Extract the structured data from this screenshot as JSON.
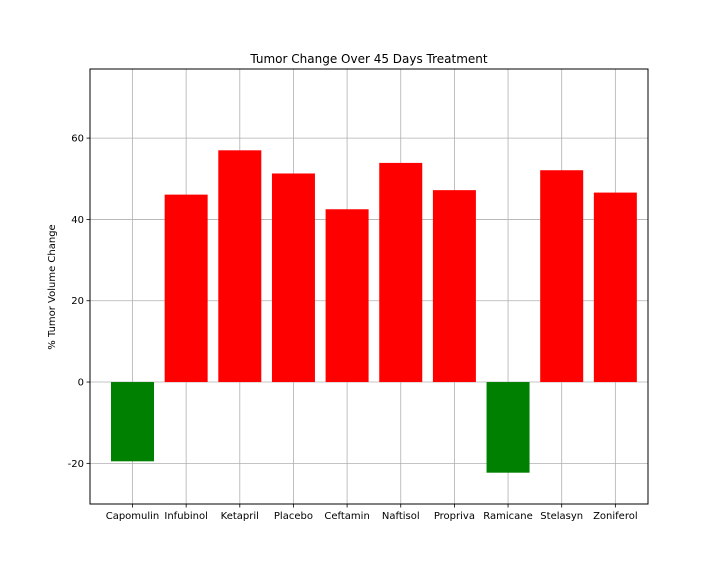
{
  "chart_data": {
    "type": "bar",
    "title": "Tumor Change Over 45 Days Treatment",
    "xlabel": "",
    "ylabel": "% Tumor Volume Change",
    "categories": [
      "Capomulin",
      "Infubinol",
      "Ketapril",
      "Placebo",
      "Ceftamin",
      "Naftisol",
      "Propriva",
      "Ramicane",
      "Stelasyn",
      "Zoniferol"
    ],
    "values": [
      -19.5,
      46.1,
      57.0,
      51.3,
      42.5,
      53.9,
      47.2,
      -22.3,
      52.1,
      46.6
    ],
    "ylim": [
      -30,
      77
    ],
    "yticks": [
      -20,
      0,
      20,
      40,
      60
    ],
    "grid": true,
    "colors": {
      "positive": "#ff0000",
      "negative": "#008000",
      "grid": "#b0b0b0",
      "axis": "#000000"
    }
  }
}
